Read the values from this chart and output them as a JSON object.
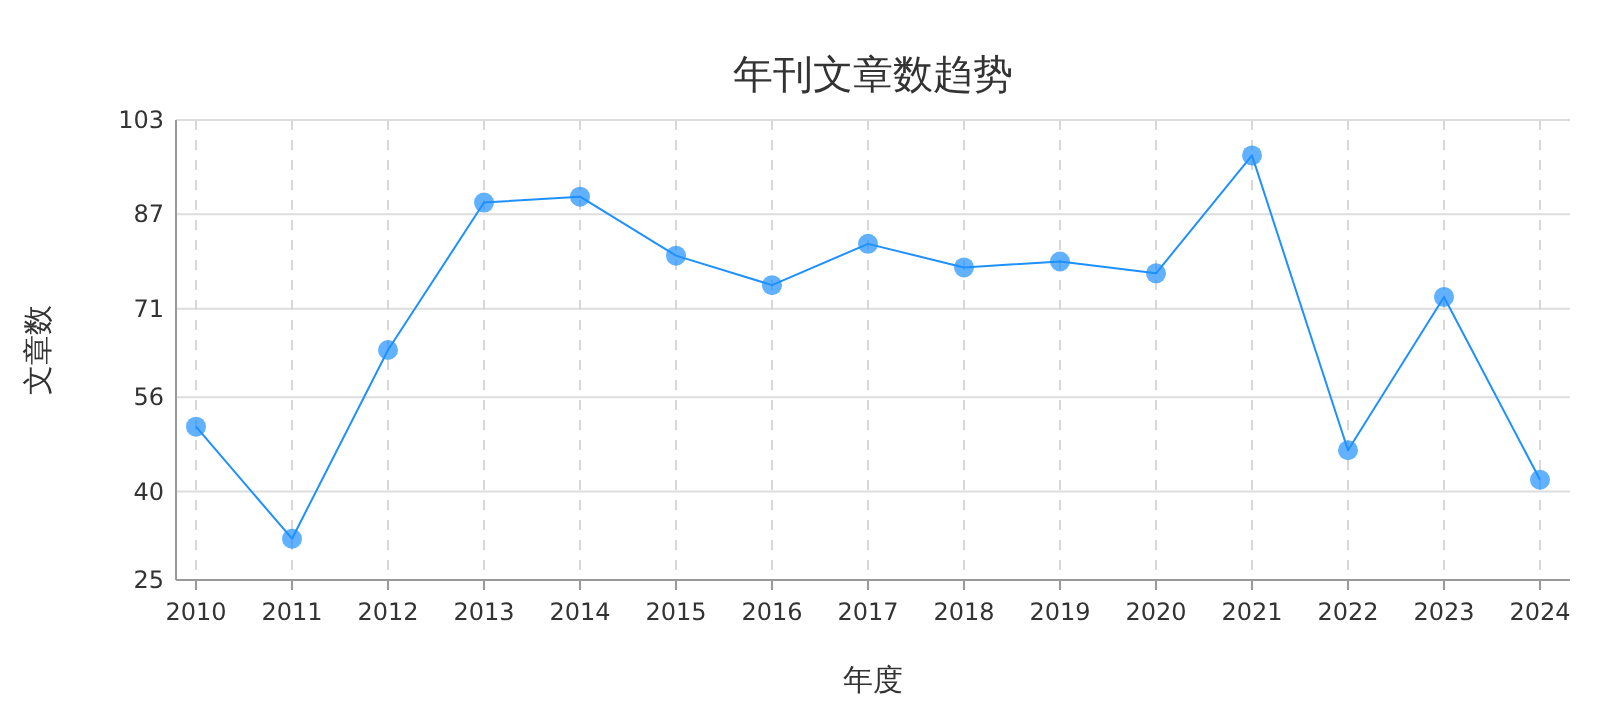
{
  "chart_data": {
    "type": "line",
    "title": "年刊文章数趋势",
    "xlabel": "年度",
    "ylabel": "文章数",
    "categories": [
      "2010",
      "2011",
      "2012",
      "2013",
      "2014",
      "2015",
      "2016",
      "2017",
      "2018",
      "2019",
      "2020",
      "2021",
      "2022",
      "2023",
      "2024"
    ],
    "series": [
      {
        "color": "#1e90ff",
        "values": [
          51,
          32,
          64,
          89,
          90,
          80,
          75,
          82,
          78,
          79,
          77,
          97,
          47,
          73,
          42
        ]
      }
    ],
    "ylim": [
      25,
      103
    ],
    "yticks": [
      25,
      40,
      56,
      71,
      87,
      103
    ],
    "grid": true,
    "marker": "circle",
    "line_style": "solid"
  }
}
